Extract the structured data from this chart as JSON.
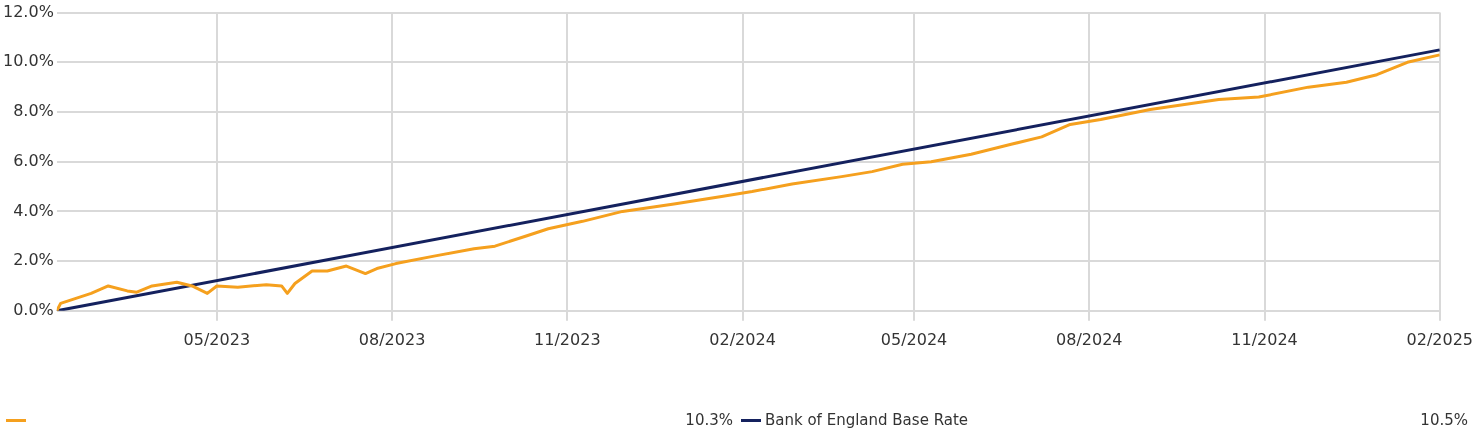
{
  "chart_data": {
    "type": "line",
    "marker": "none",
    "grid": true,
    "legend": "bottom",
    "xlim": [
      "2023-02-06",
      "2025-02-01"
    ],
    "xticks": [
      {
        "value": "2023-05-01",
        "label": "05/2023"
      },
      {
        "value": "2023-08-01",
        "label": "08/2023"
      },
      {
        "value": "2023-11-01",
        "label": "11/2023"
      },
      {
        "value": "2024-02-01",
        "label": "02/2024"
      },
      {
        "value": "2024-05-01",
        "label": "05/2024"
      },
      {
        "value": "2024-08-01",
        "label": "08/2024"
      },
      {
        "value": "2024-11-01",
        "label": "11/2024"
      },
      {
        "value": "2025-02-01",
        "label": "02/2025"
      }
    ],
    "ylim": [
      0,
      12
    ],
    "yticks": [
      {
        "value": 0,
        "label": "0.0%"
      },
      {
        "value": 2,
        "label": "2.0%"
      },
      {
        "value": 4,
        "label": "4.0%"
      },
      {
        "value": 6,
        "label": "6.0%"
      },
      {
        "value": 8,
        "label": "8.0%"
      },
      {
        "value": 10,
        "label": "10.0%"
      },
      {
        "value": 12,
        "label": "12.0%"
      }
    ],
    "series": [
      {
        "color": "#f5a01e",
        "x": [
          "2023-02-06",
          "2023-02-08",
          "2023-02-16",
          "2023-02-24",
          "2023-03-05",
          "2023-03-15",
          "2023-03-20",
          "2023-03-28",
          "2023-04-10",
          "2023-04-18",
          "2023-04-26",
          "2023-05-01",
          "2023-05-12",
          "2023-05-27",
          "2023-06-04",
          "2023-06-07",
          "2023-06-11",
          "2023-06-20",
          "2023-06-28",
          "2023-07-08",
          "2023-07-18",
          "2023-07-24",
          "2023-08-03",
          "2023-08-23",
          "2023-09-13",
          "2023-09-24",
          "2023-10-10",
          "2023-10-22",
          "2023-11-09",
          "2023-11-30",
          "2023-12-27",
          "2024-01-21",
          "2024-02-06",
          "2024-02-27",
          "2024-03-24",
          "2024-04-09",
          "2024-04-25",
          "2024-05-10",
          "2024-05-31",
          "2024-06-21",
          "2024-07-07",
          "2024-07-22",
          "2024-08-07",
          "2024-09-02",
          "2024-10-08",
          "2024-10-29",
          "2024-11-24",
          "2024-12-14",
          "2024-12-30",
          "2025-01-15",
          "2025-02-01"
        ],
        "values": [
          0,
          0.3,
          0.5,
          0.7,
          1.0,
          0.8,
          0.75,
          1.0,
          1.15,
          1.0,
          0.7,
          1.0,
          0.95,
          1.05,
          1.0,
          0.7,
          1.1,
          1.6,
          1.6,
          1.8,
          1.5,
          1.7,
          1.9,
          2.2,
          2.5,
          2.6,
          3.0,
          3.3,
          3.6,
          4.0,
          4.3,
          4.6,
          4.8,
          5.1,
          5.4,
          5.6,
          5.9,
          6.0,
          6.3,
          6.7,
          7.0,
          7.5,
          7.7,
          8.1,
          8.5,
          8.6,
          9.0,
          9.2,
          9.5,
          10.0,
          10.3
        ]
      },
      {
        "name": "Bank of England Base Rate",
        "color": "#14215e",
        "x": [
          "2023-02-06",
          "2025-02-01"
        ],
        "values": [
          0,
          10.5
        ]
      }
    ],
    "annotations": [
      "10.3%",
      "10.5%"
    ]
  }
}
